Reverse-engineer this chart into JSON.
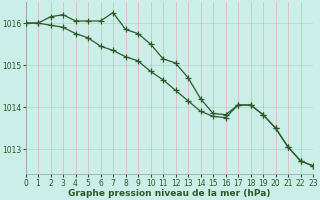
{
  "background_color": "#cceee8",
  "grid_color_h": "#b8ddd8",
  "grid_color_v": "#e0b0b0",
  "line_color": "#2d5a27",
  "xlim": [
    0,
    23
  ],
  "ylim": [
    1012.4,
    1016.5
  ],
  "yticks": [
    1013,
    1014,
    1015,
    1016
  ],
  "xticks": [
    0,
    1,
    2,
    3,
    4,
    5,
    6,
    7,
    8,
    9,
    10,
    11,
    12,
    13,
    14,
    15,
    16,
    17,
    18,
    19,
    20,
    21,
    22,
    23
  ],
  "series1_x": [
    0,
    1,
    2,
    3,
    4,
    5,
    6,
    7,
    8,
    9,
    10,
    11,
    12,
    13,
    14,
    15,
    16,
    17,
    18,
    19,
    20,
    21,
    22,
    23
  ],
  "series1_y": [
    1016.0,
    1016.0,
    1016.15,
    1016.2,
    1016.05,
    1016.05,
    1016.05,
    1016.25,
    1015.85,
    1015.75,
    1015.5,
    1015.15,
    1015.05,
    1014.7,
    1014.2,
    1013.85,
    1013.82,
    1014.05,
    1014.05,
    1013.82,
    1013.5,
    1013.05,
    1012.72,
    1012.6
  ],
  "series2_x": [
    0,
    1,
    2,
    3,
    4,
    5,
    6,
    7,
    8,
    9,
    10,
    11,
    12,
    13,
    14,
    15,
    16,
    17,
    18,
    19,
    20,
    21,
    22,
    23
  ],
  "series2_y": [
    1016.0,
    1016.0,
    1015.95,
    1015.9,
    1015.75,
    1015.65,
    1015.45,
    1015.35,
    1015.2,
    1015.1,
    1014.85,
    1014.65,
    1014.4,
    1014.15,
    1013.9,
    1013.78,
    1013.75,
    1014.05,
    1014.05,
    1013.82,
    1013.5,
    1013.05,
    1012.72,
    1012.6
  ],
  "xlabel": "Graphe pression niveau de la mer (hPa)",
  "marker": "+",
  "markersize": 4,
  "linewidth": 0.9,
  "tick_fontsize": 5.5,
  "label_fontsize": 6.5
}
